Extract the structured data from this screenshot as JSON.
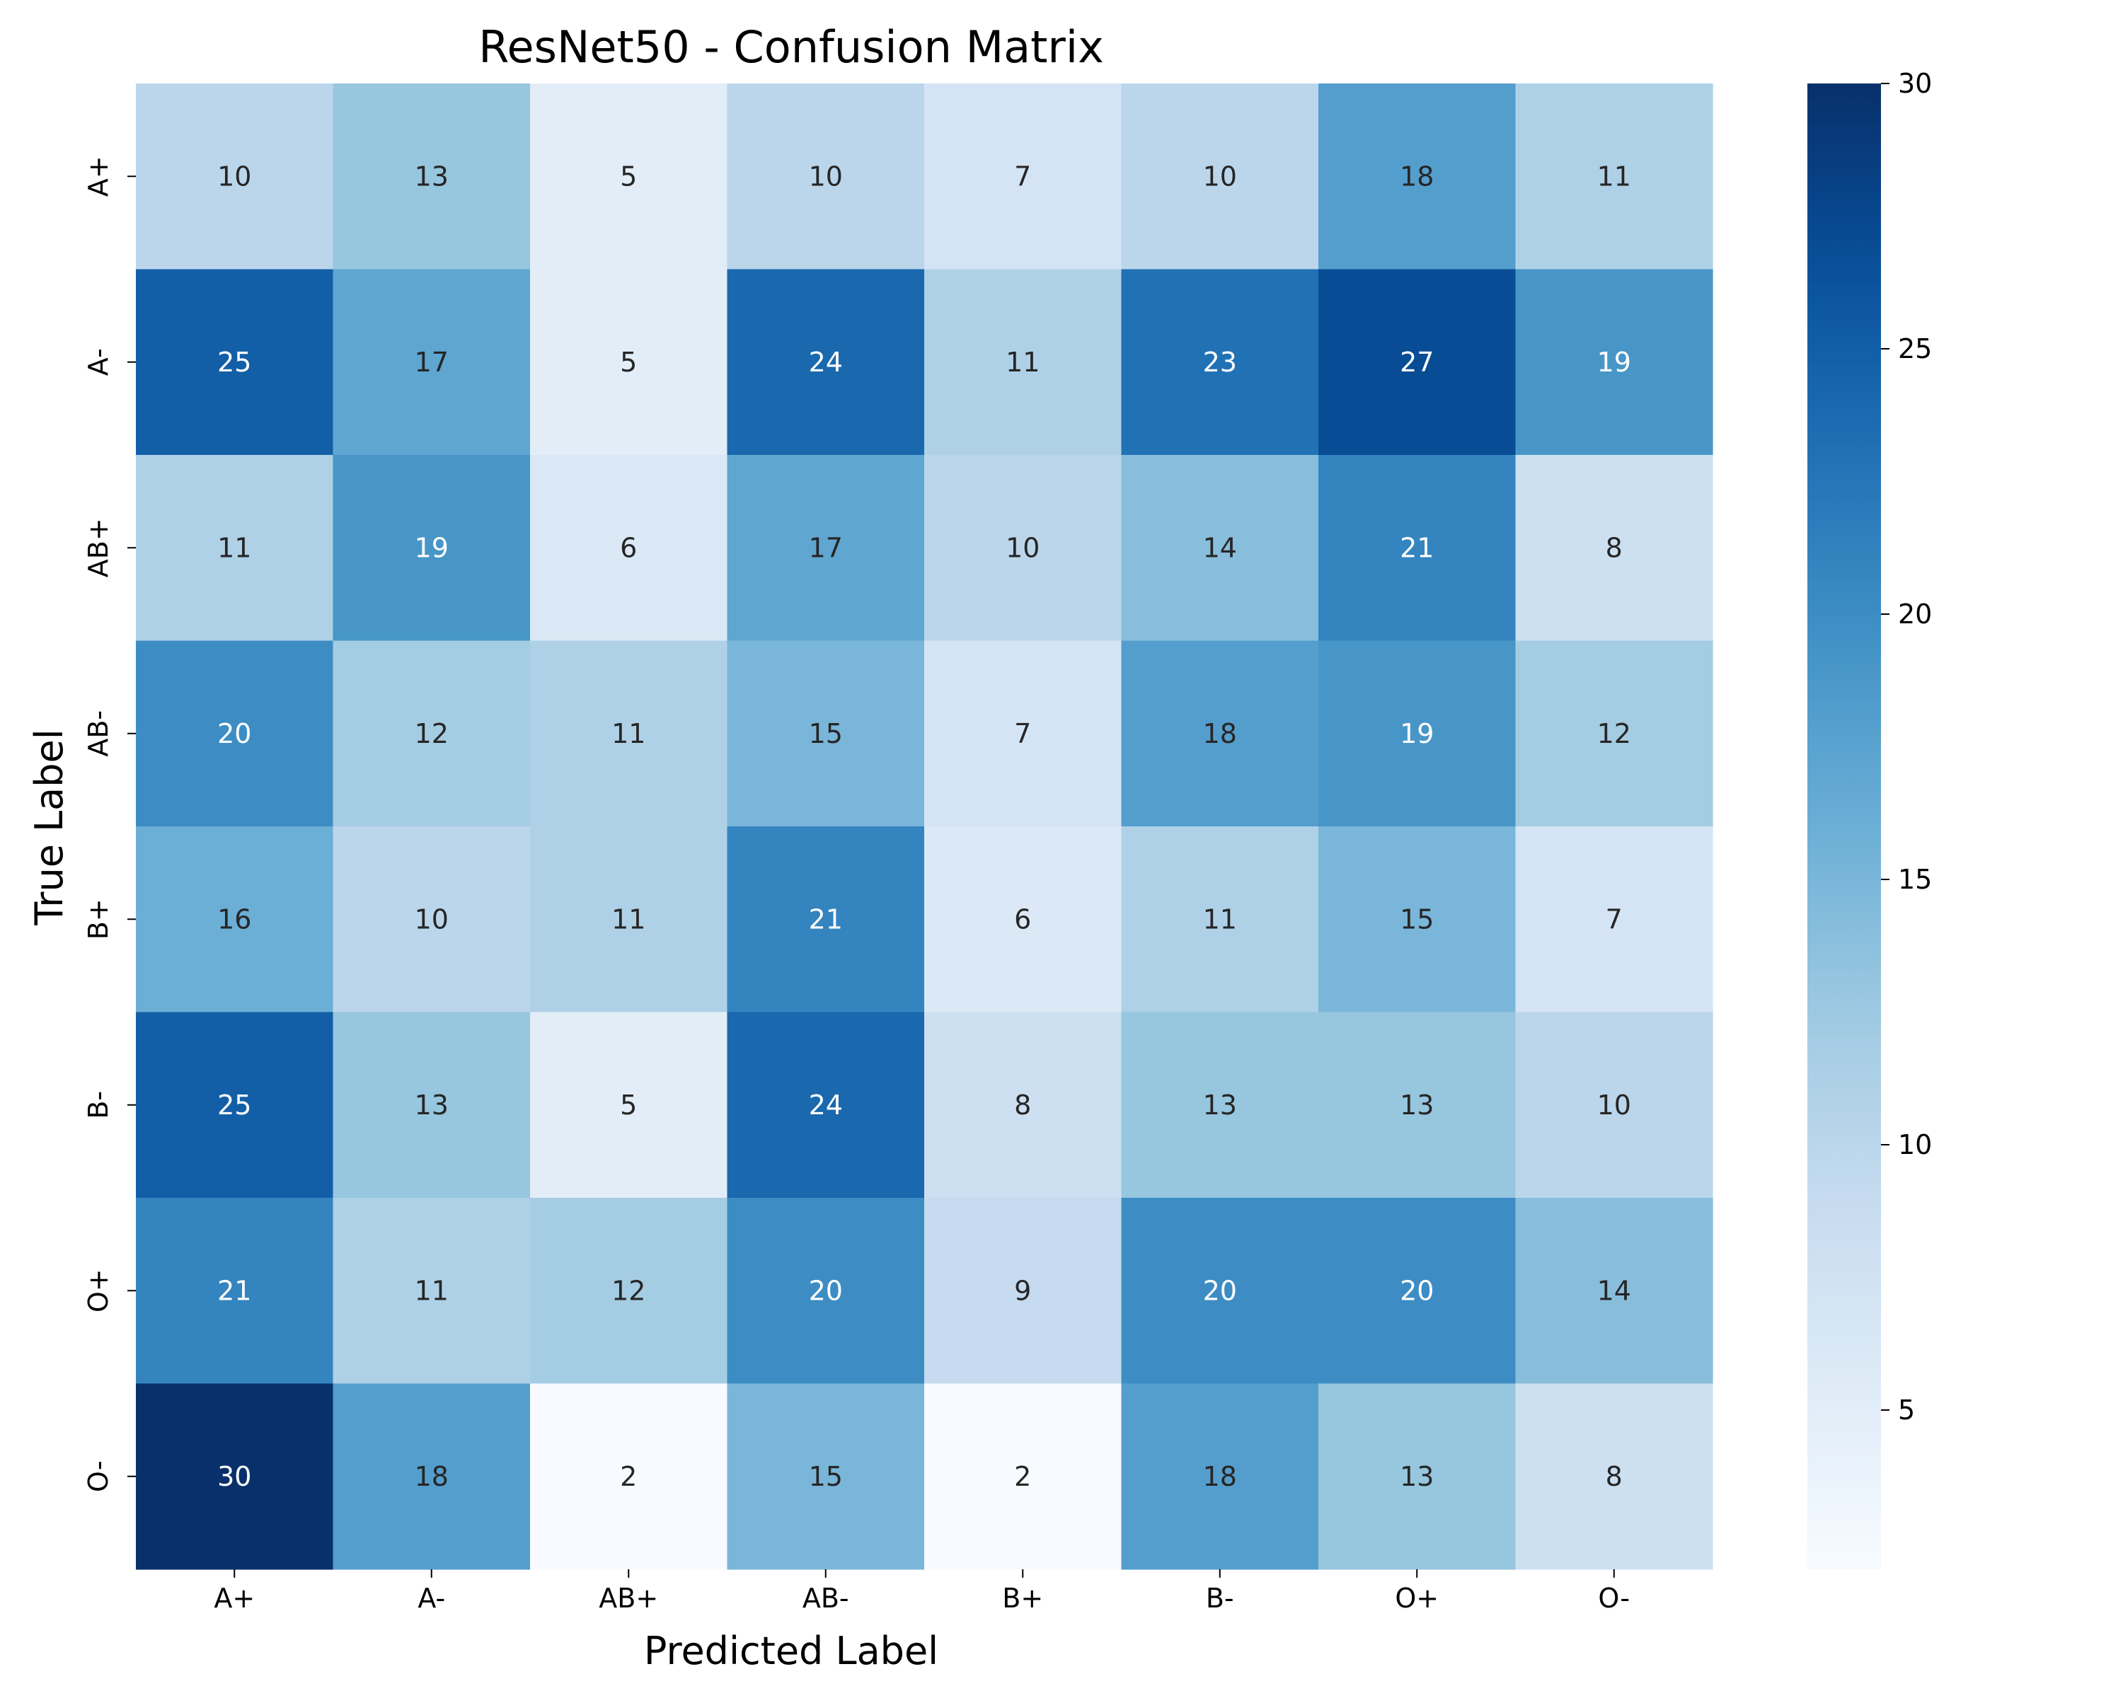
{
  "chart_data": {
    "type": "heatmap",
    "title": "ResNet50 - Confusion Matrix",
    "xlabel": "Predicted Label",
    "ylabel": "True Label",
    "x_categories": [
      "A+",
      "A-",
      "AB+",
      "AB-",
      "B+",
      "B-",
      "O+",
      "O-"
    ],
    "y_categories": [
      "A+",
      "A-",
      "AB+",
      "AB-",
      "B+",
      "B-",
      "O+",
      "O-"
    ],
    "values": [
      [
        10,
        13,
        5,
        10,
        7,
        10,
        18,
        11
      ],
      [
        25,
        17,
        5,
        24,
        11,
        23,
        27,
        19
      ],
      [
        11,
        19,
        6,
        17,
        10,
        14,
        21,
        8
      ],
      [
        20,
        12,
        11,
        15,
        7,
        18,
        19,
        12
      ],
      [
        16,
        10,
        11,
        21,
        6,
        11,
        15,
        7
      ],
      [
        25,
        13,
        5,
        24,
        8,
        13,
        13,
        10
      ],
      [
        21,
        11,
        12,
        20,
        9,
        20,
        20,
        14
      ],
      [
        30,
        18,
        2,
        15,
        2,
        18,
        13,
        8
      ]
    ],
    "colormap": "Blues",
    "vmin": 2,
    "vmax": 30,
    "colorbar_ticks": [
      5,
      10,
      15,
      20,
      25,
      30
    ],
    "annotation_text_light": "#ffffff",
    "annotation_text_dark": "#262626"
  }
}
